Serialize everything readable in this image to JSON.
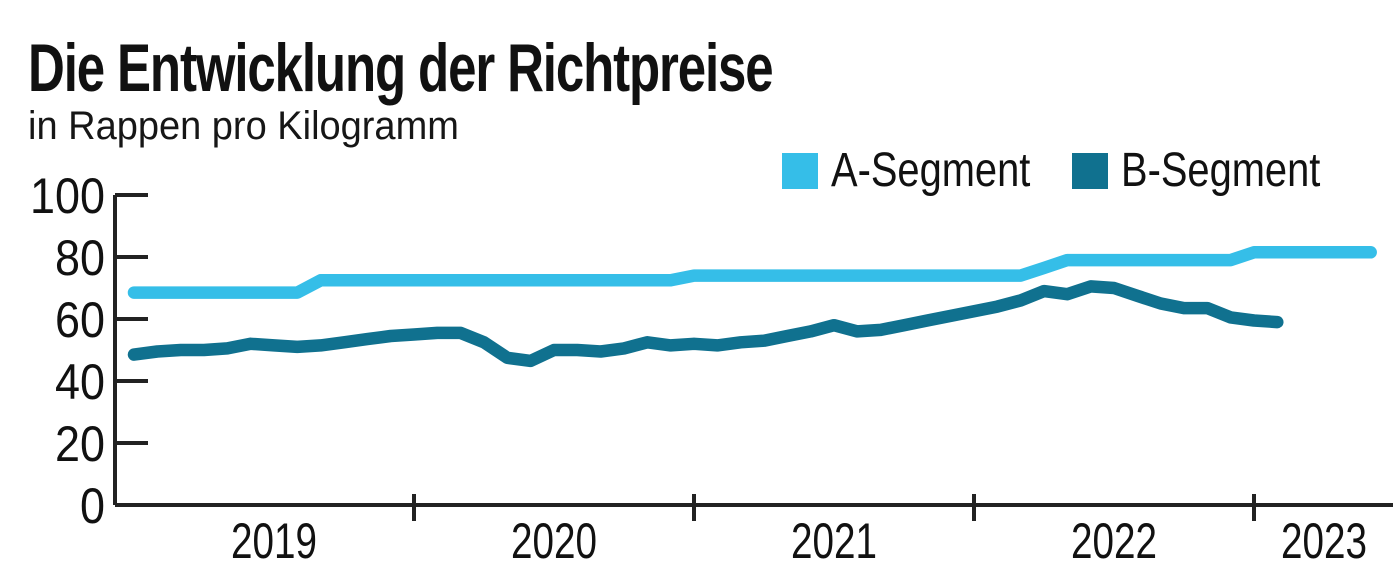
{
  "header": {
    "title": "Die Entwicklung der Richtpreise",
    "subtitle": "in Rappen pro Kilogramm"
  },
  "legend": [
    {
      "label": "A-Segment",
      "color": "#35BEE8"
    },
    {
      "label": "B-Segment",
      "color": "#10718F"
    }
  ],
  "colors": {
    "text": "#111111",
    "axis": "#222222"
  },
  "chart_data": {
    "type": "line",
    "title": "Die Entwicklung der Richtpreise",
    "unit_label": "in Rappen pro Kilogramm",
    "grid": false,
    "legend_position": "top-right",
    "y_axis": {
      "range": [
        0,
        100
      ],
      "ticks": [
        0,
        20,
        40,
        60,
        80,
        100
      ]
    },
    "x_axis": {
      "year_labels": [
        "2019",
        "2020",
        "2021",
        "2022",
        "2023"
      ],
      "boundary_tick_years": [
        2020,
        2021,
        2022,
        2023
      ]
    },
    "series": [
      {
        "name": "A-Segment",
        "color": "#35BEE8",
        "start_year": 2019,
        "start_month": 1,
        "monthly_values": [
          68.5,
          68.5,
          68.5,
          68.5,
          68.5,
          68.5,
          68.5,
          68.5,
          72.5,
          72.5,
          72.5,
          72.5,
          72.5,
          72.5,
          72.5,
          72.5,
          72.5,
          72.5,
          72.5,
          72.5,
          72.5,
          72.5,
          72.5,
          72.5,
          74,
          74,
          74,
          74,
          74,
          74,
          74,
          74,
          74,
          74,
          74,
          74,
          74,
          74,
          74,
          76.5,
          79,
          79,
          79,
          79,
          79,
          79,
          79,
          79,
          81.5,
          81.5,
          81.5,
          81.5,
          81.5,
          81.5
        ]
      },
      {
        "name": "B-Segment",
        "color": "#10718F",
        "start_year": 2019,
        "start_month": 1,
        "monthly_values": [
          48.5,
          49.5,
          50,
          50,
          50.5,
          52,
          51.5,
          51,
          51.5,
          52.5,
          53.5,
          54.5,
          55,
          55.5,
          55.5,
          52.5,
          47.5,
          46.5,
          50,
          50,
          49.5,
          50.5,
          52.5,
          51.5,
          52,
          51.5,
          52.5,
          53,
          54.5,
          56,
          58,
          56,
          56.5,
          58,
          59.5,
          61,
          62.5,
          64,
          66,
          69,
          68,
          70.5,
          70,
          67.5,
          65,
          63.5,
          63.5,
          60.5,
          59.5,
          59
        ]
      }
    ]
  }
}
